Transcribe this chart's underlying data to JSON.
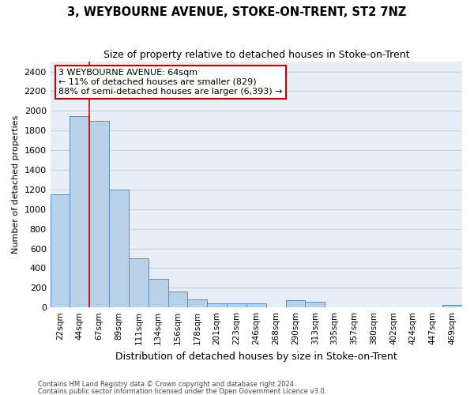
{
  "title": "3, WEYBOURNE AVENUE, STOKE-ON-TRENT, ST2 7NZ",
  "subtitle": "Size of property relative to detached houses in Stoke-on-Trent",
  "xlabel": "Distribution of detached houses by size in Stoke-on-Trent",
  "ylabel": "Number of detached properties",
  "categories": [
    "22sqm",
    "44sqm",
    "67sqm",
    "89sqm",
    "111sqm",
    "134sqm",
    "156sqm",
    "178sqm",
    "201sqm",
    "223sqm",
    "246sqm",
    "268sqm",
    "290sqm",
    "313sqm",
    "335sqm",
    "357sqm",
    "380sqm",
    "402sqm",
    "424sqm",
    "447sqm",
    "469sqm"
  ],
  "values": [
    1150,
    1950,
    1900,
    1200,
    500,
    290,
    160,
    80,
    45,
    45,
    45,
    0,
    70,
    55,
    0,
    0,
    0,
    0,
    0,
    0,
    25
  ],
  "bar_color": "#b8d0e8",
  "bar_edge_color": "#5b8cbf",
  "grid_color": "#c8d4e4",
  "background_color": "#e8eef6",
  "vline_x": 1.5,
  "vline_color": "#cc0000",
  "annotation_text": "3 WEYBOURNE AVENUE: 64sqm\n← 11% of detached houses are smaller (829)\n88% of semi-detached houses are larger (6,393) →",
  "annotation_box_color": "#ffffff",
  "annotation_box_edge": "#cc0000",
  "ylim": [
    0,
    2500
  ],
  "yticks": [
    0,
    200,
    400,
    600,
    800,
    1000,
    1200,
    1400,
    1600,
    1800,
    2000,
    2200,
    2400
  ],
  "footer1": "Contains HM Land Registry data © Crown copyright and database right 2024.",
  "footer2": "Contains public sector information licensed under the Open Government Licence v3.0."
}
